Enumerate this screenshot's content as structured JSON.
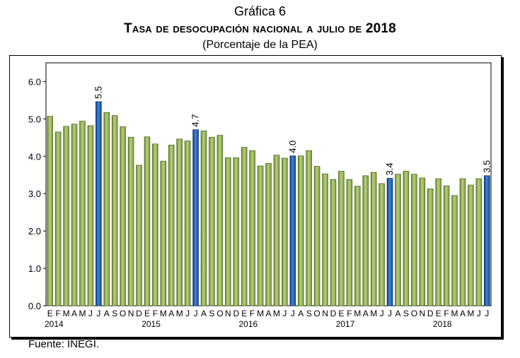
{
  "header": {
    "graph_label": "Gráfica 6",
    "title": "Tasa de desocupación nacional a julio de 2018",
    "subtitle": "(Porcentaje de la PEA)"
  },
  "footer": {
    "source": "Fuente: INEGI."
  },
  "colors": {
    "bar": "#8fac52",
    "highlight": "#1f5fb4"
  },
  "chart_data": {
    "type": "bar",
    "title": "Tasa de desocupación nacional a julio de 2018",
    "subtitle": "(Porcentaje de la PEA)",
    "ylim": [
      0,
      6.5
    ],
    "yticks": [
      "0.0",
      "1.0",
      "2.0",
      "3.0",
      "4.0",
      "5.0",
      "6.0"
    ],
    "grid": false,
    "month_labels": [
      "E",
      "F",
      "M",
      "A",
      "M",
      "J",
      "J",
      "A",
      "S",
      "O",
      "N",
      "D"
    ],
    "years": [
      "2014",
      "2015",
      "2016",
      "2017",
      "2018"
    ],
    "categories": [
      "2014-01",
      "2014-02",
      "2014-03",
      "2014-04",
      "2014-05",
      "2014-06",
      "2014-07",
      "2014-08",
      "2014-09",
      "2014-10",
      "2014-11",
      "2014-12",
      "2015-01",
      "2015-02",
      "2015-03",
      "2015-04",
      "2015-05",
      "2015-06",
      "2015-07",
      "2015-08",
      "2015-09",
      "2015-10",
      "2015-11",
      "2015-12",
      "2016-01",
      "2016-02",
      "2016-03",
      "2016-04",
      "2016-05",
      "2016-06",
      "2016-07",
      "2016-08",
      "2016-09",
      "2016-10",
      "2016-11",
      "2016-12",
      "2017-01",
      "2017-02",
      "2017-03",
      "2017-04",
      "2017-05",
      "2017-06",
      "2017-07",
      "2017-08",
      "2017-09",
      "2017-10",
      "2017-11",
      "2017-12",
      "2018-01",
      "2018-02",
      "2018-03",
      "2018-04",
      "2018-05",
      "2018-06",
      "2018-07"
    ],
    "values": [
      5.07,
      4.65,
      4.8,
      4.86,
      4.94,
      4.82,
      5.46,
      5.17,
      5.09,
      4.79,
      4.51,
      3.76,
      4.52,
      4.33,
      3.87,
      4.3,
      4.46,
      4.41,
      4.71,
      4.68,
      4.51,
      4.56,
      3.96,
      3.96,
      4.24,
      4.15,
      3.74,
      3.81,
      4.03,
      3.95,
      4.01,
      4.01,
      4.15,
      3.73,
      3.53,
      3.38,
      3.6,
      3.38,
      3.2,
      3.48,
      3.57,
      3.27,
      3.41,
      3.52,
      3.6,
      3.52,
      3.42,
      3.13,
      3.4,
      3.21,
      2.95,
      3.4,
      3.23,
      3.4,
      3.48
    ],
    "highlight_indices": [
      6,
      18,
      30,
      42,
      54
    ],
    "data_labels": [
      "5.5",
      "4.7",
      "4.0",
      "3.4",
      "3.5"
    ]
  }
}
